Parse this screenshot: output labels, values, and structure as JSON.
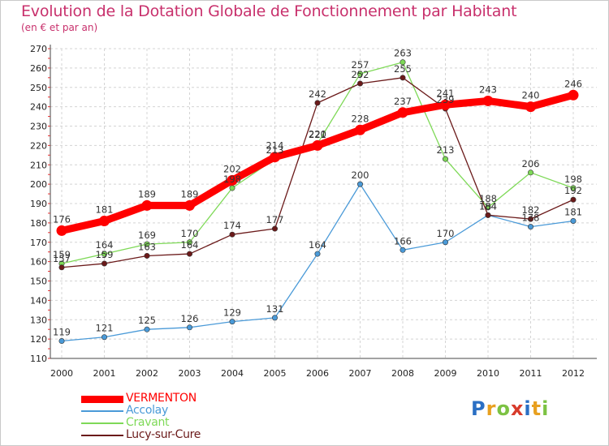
{
  "title": "Evolution de la Dotation Globale de Fonctionnement par Habitant",
  "subtitle": "(en € et par an)",
  "logo": {
    "text": "Proxiti",
    "colors": [
      "#2a6fc4",
      "#e8a020",
      "#7cc243",
      "#d83b2b",
      "#2a6fc4",
      "#e8a020",
      "#7cc243"
    ]
  },
  "chart_data": {
    "type": "line",
    "title": "Evolution de la Dotation Globale de Fonctionnement par Habitant",
    "ylabel": "(en € et par an)",
    "xlabel": "",
    "x": [
      "2000",
      "2001",
      "2002",
      "2003",
      "2004",
      "2005",
      "2006",
      "2007",
      "2008",
      "2009",
      "2010",
      "2011",
      "2012"
    ],
    "ylim": [
      110,
      270
    ],
    "yticks": [
      110,
      120,
      130,
      140,
      150,
      160,
      170,
      180,
      190,
      200,
      210,
      220,
      230,
      240,
      250,
      260,
      270
    ],
    "grid": true,
    "legend_position": "bottom-left",
    "series": [
      {
        "name": "VERMENTON",
        "color": "#ff0000",
        "values": [
          176,
          181,
          189,
          189,
          202,
          214,
          220,
          228,
          237,
          241,
          243,
          240,
          246
        ]
      },
      {
        "name": "Accolay",
        "color": "#4a9ad8",
        "values": [
          119,
          121,
          125,
          126,
          129,
          131,
          164,
          200,
          166,
          170,
          184,
          178,
          181
        ]
      },
      {
        "name": "Cravant",
        "color": "#7ed957",
        "values": [
          159,
          164,
          169,
          170,
          198,
          213,
          221,
          257,
          263,
          213,
          188,
          206,
          198
        ]
      },
      {
        "name": "Lucy-sur-Cure",
        "color": "#6b1a1a",
        "values": [
          157,
          159,
          163,
          164,
          174,
          177,
          242,
          252,
          255,
          239,
          184,
          182,
          192
        ]
      }
    ]
  }
}
